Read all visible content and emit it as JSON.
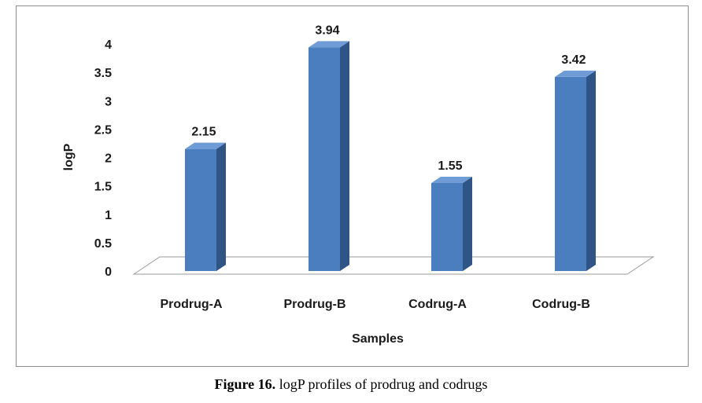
{
  "chart_data": {
    "type": "bar",
    "categories": [
      "Prodrug-A",
      "Prodrug-B",
      "Codrug-A",
      "Codrug-B"
    ],
    "values": [
      2.15,
      3.94,
      1.55,
      3.42
    ],
    "data_labels": [
      "2.15",
      "3.94",
      "1.55",
      "3.42"
    ],
    "yticks": [
      "0",
      "0.5",
      "1",
      "1.5",
      "2",
      "2.5",
      "3",
      "3.5",
      "4"
    ],
    "ylim": [
      0,
      4
    ],
    "xlabel": "Samples",
    "ylabel": "logP",
    "grid": false,
    "legend": "none",
    "style": "3d-column",
    "colors": {
      "bar_front": "#4a7ebf",
      "bar_side": "#2f5587",
      "bar_top": "#6f9bd6"
    }
  },
  "caption": {
    "label": "Figure 16.",
    "text": " logP profiles of prodrug and codrugs"
  }
}
